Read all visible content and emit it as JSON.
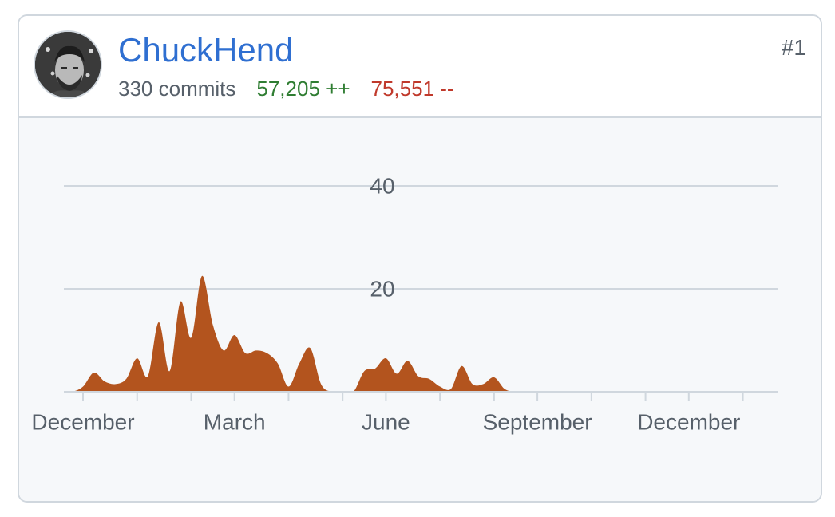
{
  "contributor": {
    "username": "ChuckHend",
    "commits_label": "330 commits",
    "additions_label": "57,205 ++",
    "deletions_label": "75,551 --",
    "rank": "#1"
  },
  "colors": {
    "link": "#2f6fd1",
    "additions": "#2f7d32",
    "deletions": "#c0392b",
    "area_fill": "#b3541e",
    "grid": "#d0d7de",
    "axis_text": "#57606a"
  },
  "chart_data": {
    "type": "area",
    "title": "",
    "xlabel": "",
    "ylabel": "",
    "ylim": [
      0,
      40
    ],
    "y_ticks": [
      20,
      40
    ],
    "x_tick_labels": [
      "December",
      "March",
      "June",
      "September",
      "December"
    ],
    "x_tick_label_weeks": [
      0,
      14,
      28,
      42,
      56
    ],
    "week_tick_marks": [
      0,
      5,
      10,
      14,
      19,
      24,
      28,
      33,
      38,
      42,
      47,
      52,
      56,
      61
    ],
    "grid": true,
    "legend": "none",
    "series": [
      {
        "x": [
          -2,
          -1,
          0,
          1,
          2,
          3,
          4,
          5,
          6,
          7,
          8,
          9,
          10,
          11,
          12,
          13,
          14,
          15,
          16,
          17,
          18,
          19,
          20,
          21,
          22,
          23,
          24,
          25,
          26,
          27,
          28,
          29,
          30,
          31,
          32,
          33,
          34,
          35,
          36,
          37,
          38,
          39,
          40,
          41,
          42,
          43,
          44,
          45,
          46,
          47,
          48,
          49,
          50,
          51,
          52,
          53,
          54,
          55,
          56,
          57,
          58,
          59,
          60,
          61,
          62,
          63,
          64
        ],
        "values": [
          0,
          0,
          1,
          3.7,
          2,
          1.5,
          2.5,
          6.5,
          3,
          13.5,
          4,
          17.5,
          10.5,
          22.5,
          13,
          8,
          11,
          7.5,
          8,
          7.5,
          5.5,
          1,
          5.5,
          8.5,
          1.5,
          0,
          0,
          0,
          4,
          4.5,
          6.5,
          3.5,
          6,
          3,
          2.5,
          1,
          0.5,
          5,
          1.5,
          1.5,
          2.8,
          0.5,
          0,
          0,
          0,
          0,
          0,
          0,
          0,
          0,
          0,
          0,
          0,
          0,
          0,
          0,
          0,
          0,
          0,
          0,
          0,
          0,
          0,
          0,
          0,
          0,
          0
        ]
      }
    ]
  }
}
